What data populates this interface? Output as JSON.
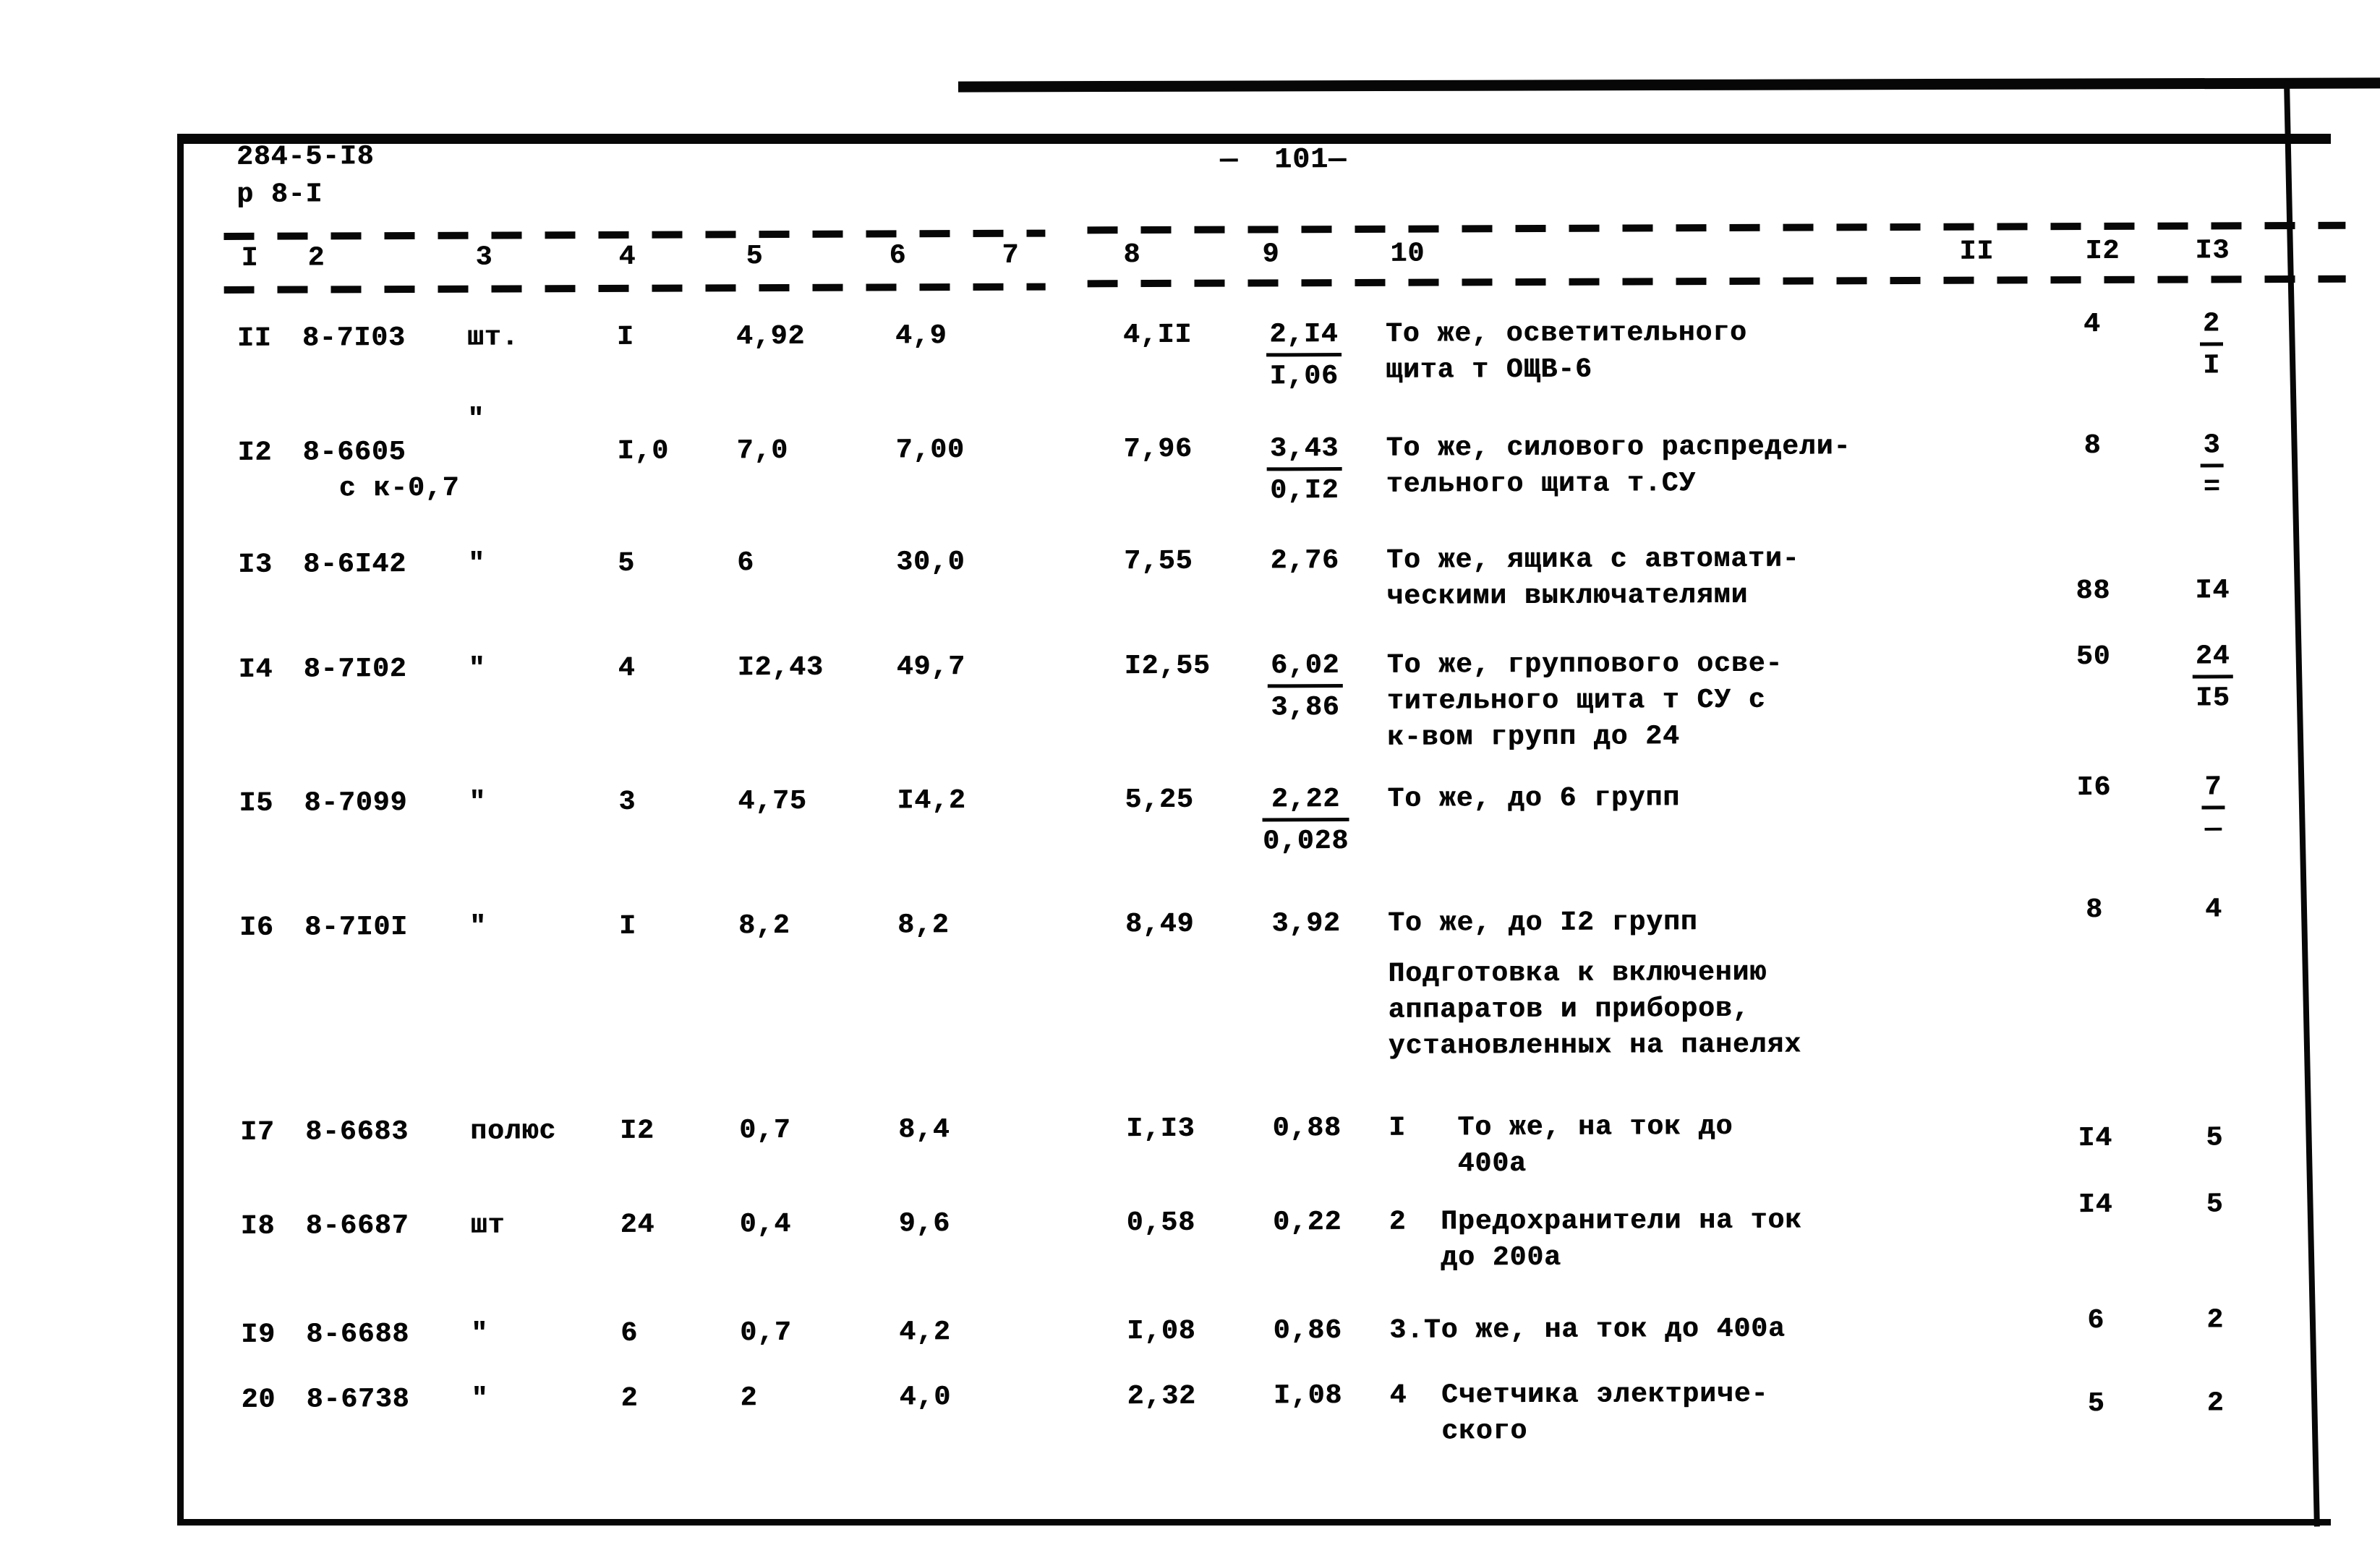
{
  "header": {
    "doc_ref_line1": "284-5-I8",
    "doc_ref_line2": "р 8-I",
    "page_number": "—  101—"
  },
  "table": {
    "column_headers": [
      "I",
      "2",
      "3",
      "4",
      "5",
      "6",
      "7",
      "8",
      "9",
      "10",
      "II",
      "I2",
      "I3"
    ],
    "rows": [
      {
        "num": "II",
        "code": "8-7I03",
        "unit": "шт.",
        "qty": "I",
        "c5": "4,92",
        "c6": "4,9",
        "c8": "4,II",
        "c9n": "2,I4",
        "c9d": "I,06",
        "desc": [
          "То же, осветительного",
          "щита т ОЩВ-6"
        ],
        "c12": "4",
        "c13n": "2",
        "c13d": "I"
      },
      {
        "num": "I2",
        "code": "8-6605",
        "code2": "с к-0,7",
        "unit": "\"",
        "qty": "I,0",
        "c5": "7,0",
        "c6": "7,00",
        "c8": "7,96",
        "c9n": "3,43",
        "c9d": "0,I2",
        "desc": [
          "То же, силового распредели-",
          "тельного щита т.СУ"
        ],
        "c12": "8",
        "c13n": "3",
        "c13d": "="
      },
      {
        "num": "I3",
        "code": "8-6I42",
        "unit": "\"",
        "qty": "5",
        "c5": "6",
        "c6": "30,0",
        "c8": "7,55",
        "c9": "2,76",
        "desc": [
          "То же, ящика с автомати-",
          "ческими выключателями"
        ],
        "c12": "88",
        "c13": "I4"
      },
      {
        "num": "I4",
        "code": "8-7I02",
        "unit": "\"",
        "qty": "4",
        "c5": "I2,43",
        "c6": "49,7",
        "c8": "I2,55",
        "c9n": "6,02",
        "c9d": "3,86",
        "desc": [
          "То же, группового осве-",
          "тительного щита т СУ с",
          "к-вом групп до 24"
        ],
        "c12": "50",
        "c13n": "24",
        "c13d": "I5"
      },
      {
        "num": "I5",
        "code": "8-7099",
        "unit": "\"",
        "qty": "3",
        "c5": "4,75",
        "c6": "I4,2",
        "c8": "5,25",
        "c9n": "2,22",
        "c9d": "0,028",
        "desc": [
          "То же, до 6 групп"
        ],
        "c12": "I6",
        "c13n": "7",
        "c13d": "—"
      },
      {
        "num": "I6",
        "code": "8-7I0I",
        "unit": "\"",
        "qty": "I",
        "c5": "8,2",
        "c6": "8,2",
        "c8": "8,49",
        "c9": "3,92",
        "desc": [
          "То же, до I2 групп"
        ],
        "c12": "8",
        "c13": "4"
      },
      {
        "num": "I7",
        "code": "8-6683",
        "unit": "полюс",
        "qty": "I2",
        "c5": "0,7",
        "c6": "8,4",
        "c8": "I,I3",
        "c9": "0,88",
        "desc": [
          "I   То же, на ток до",
          "    400а"
        ],
        "c12": "I4",
        "c13": "5"
      },
      {
        "num": "I8",
        "code": "8-6687",
        "unit": "шт",
        "qty": "24",
        "c5": "0,4",
        "c6": "9,6",
        "c8": "0,58",
        "c9": "0,22",
        "desc": [
          "2  Предохранители на ток",
          "   до 200а"
        ],
        "c12": "I4",
        "c13": "5"
      },
      {
        "num": "I9",
        "code": "8-6688",
        "unit": "\"",
        "qty": "6",
        "c5": "0,7",
        "c6": "4,2",
        "c8": "I,08",
        "c9": "0,86",
        "desc": [
          "3.То же, на ток до 400а"
        ],
        "c12": "6",
        "c13": "2"
      },
      {
        "num": "20",
        "code": "8-6738",
        "unit": "\"",
        "qty": "2",
        "c5": "2",
        "c6": "4,0",
        "c8": "2,32",
        "c9": "I,08",
        "desc": [
          "4  Счетчика электриче-",
          "   ского"
        ],
        "c12": "5",
        "c13": "2"
      }
    ],
    "section_note_lines": [
      "Подготовка к включению",
      "аппаратов и приборов,",
      "установленных на панелях"
    ]
  }
}
